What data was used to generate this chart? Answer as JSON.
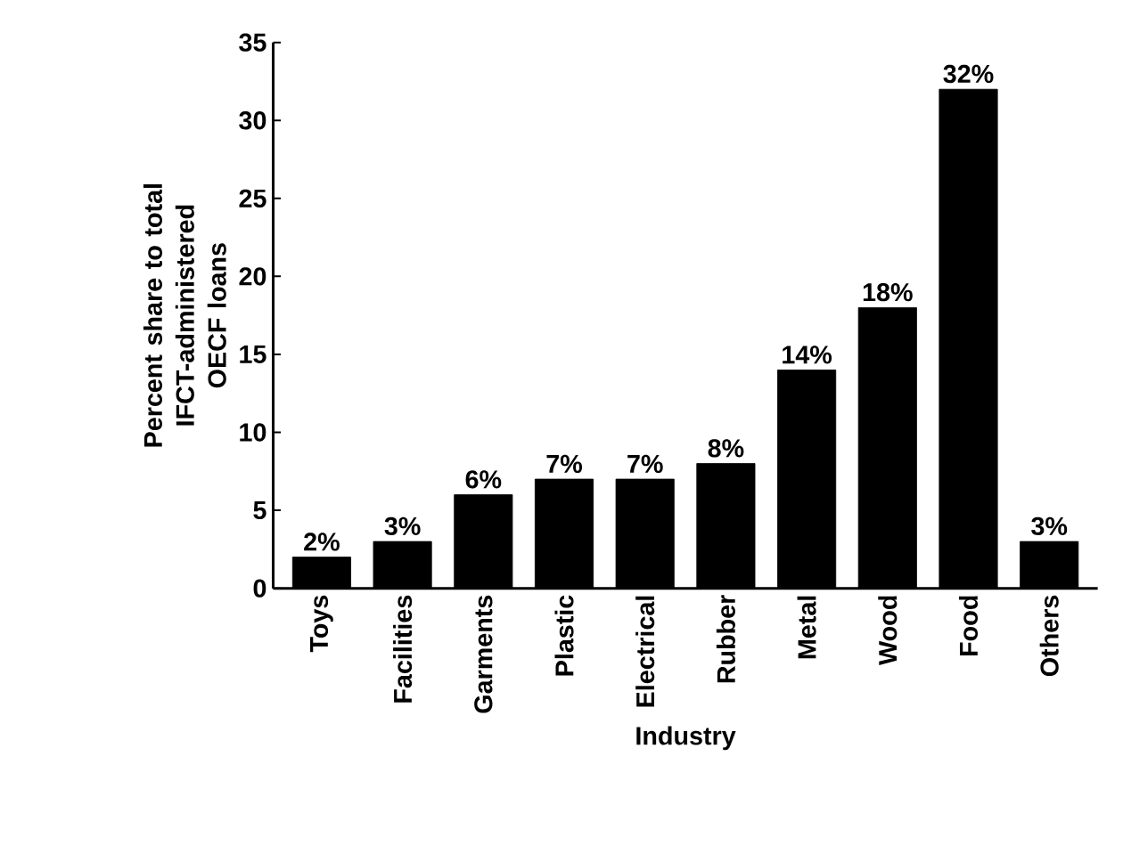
{
  "chart_data": {
    "type": "bar",
    "xlabel": "Industry",
    "ylabel": "Percent share to total IFCT-administered OECF loans",
    "categories": [
      "Toys",
      "Facilities",
      "Garments",
      "Plastic",
      "Electrical",
      "Rubber",
      "Metal",
      "Wood",
      "Food",
      "Others"
    ],
    "values": [
      2,
      3,
      6,
      7,
      7,
      8,
      14,
      18,
      32,
      3
    ],
    "value_labels": [
      "2%",
      "3%",
      "6%",
      "7%",
      "7%",
      "8%",
      "14%",
      "18%",
      "32%",
      "3%"
    ],
    "color": "#000000",
    "ylim": [
      0,
      35
    ],
    "yticks": [
      0,
      5,
      10,
      15,
      20,
      25,
      30,
      35
    ],
    "grid": false
  }
}
